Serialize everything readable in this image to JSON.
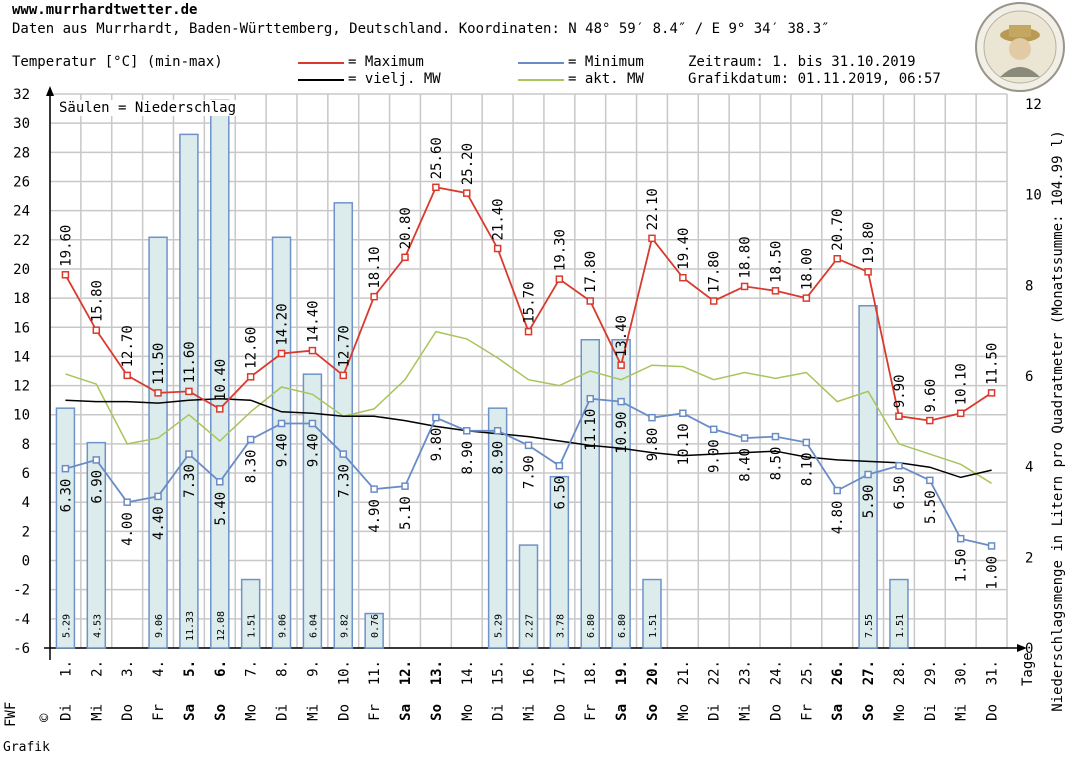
{
  "header": {
    "site": "www.murrhardtwetter.de",
    "subtitle": "Daten aus Murrhardt, Baden-Württemberg, Deutschland. Koordinaten: N 48° 59′ 8.4″ / E 9° 34′ 38.3″",
    "period": "Zeitraum: 1. bis 31.10.2019",
    "graph_date": "Grafikdatum: 01.11.2019, 06:57"
  },
  "footer": {
    "brand_a": "FWF",
    "brand_b": "©",
    "brand_c": "Grafik",
    "tage": "Tage"
  },
  "colors": {
    "max": "#d93a2e",
    "min": "#6a8cc6",
    "longterm": "#000000",
    "current": "#a8c45a",
    "bar_fill": "#dcecec",
    "bar_stroke": "#6f92c8",
    "grid": "#c8c8c8"
  },
  "chart_data": {
    "type": "line",
    "ylabel": "Temperatur [°C] (min-max)",
    "y2label": "Niederschlagsmenge in Litern pro Quadratmeter (Monatssumme: 104.99 l)",
    "bars_note": "Säulen = Niederschlag",
    "ylim": [
      -6,
      32
    ],
    "y_ticks": [
      -6,
      -4,
      -2,
      0,
      2,
      4,
      6,
      8,
      10,
      12,
      14,
      16,
      18,
      20,
      22,
      24,
      26,
      28,
      30,
      32
    ],
    "y2lim": [
      0,
      12
    ],
    "y2_ticks": [
      0,
      2,
      4,
      6,
      8,
      10,
      12
    ],
    "grid": true,
    "x": [
      "1.",
      "2.",
      "3.",
      "4.",
      "5.",
      "6.",
      "7.",
      "8.",
      "9.",
      "10.",
      "11.",
      "12.",
      "13.",
      "14.",
      "15.",
      "16.",
      "17.",
      "18.",
      "19.",
      "20.",
      "21.",
      "22.",
      "23.",
      "24.",
      "25.",
      "26.",
      "27.",
      "28.",
      "29.",
      "30.",
      "31."
    ],
    "weekdays": [
      "Di",
      "Mi",
      "Do",
      "Fr",
      "Sa",
      "So",
      "Mo",
      "Di",
      "Mi",
      "Do",
      "Fr",
      "Sa",
      "So",
      "Mo",
      "Di",
      "Mi",
      "Do",
      "Fr",
      "Sa",
      "So",
      "Mo",
      "Di",
      "Mi",
      "Do",
      "Fr",
      "Sa",
      "So",
      "Mo",
      "Di",
      "Mi",
      "Do"
    ],
    "weekend": [
      false,
      false,
      false,
      false,
      true,
      true,
      false,
      false,
      false,
      false,
      false,
      true,
      true,
      false,
      false,
      false,
      false,
      false,
      true,
      true,
      false,
      false,
      false,
      false,
      false,
      true,
      true,
      false,
      false,
      false,
      false
    ],
    "legend": {
      "max": "= Maximum",
      "min": "= Minimum",
      "longterm": "= vielj. MW",
      "current": "= akt. MW"
    },
    "max": [
      19.6,
      15.8,
      12.7,
      11.5,
      11.6,
      10.4,
      12.6,
      14.2,
      14.4,
      12.7,
      18.1,
      20.8,
      25.6,
      25.2,
      21.4,
      15.7,
      19.3,
      17.8,
      13.4,
      22.1,
      19.4,
      17.8,
      18.8,
      18.5,
      18.0,
      20.7,
      19.8,
      9.9,
      9.6,
      10.1,
      11.5
    ],
    "min": [
      6.3,
      6.9,
      4.0,
      4.4,
      7.3,
      5.4,
      8.3,
      9.4,
      9.4,
      7.3,
      4.9,
      5.1,
      9.8,
      8.9,
      8.9,
      7.9,
      6.5,
      11.1,
      10.9,
      9.8,
      10.1,
      9.0,
      8.4,
      8.5,
      8.1,
      4.8,
      5.9,
      6.5,
      5.5,
      1.5,
      1.0
    ],
    "precip": [
      5.29,
      4.53,
      0,
      9.06,
      11.33,
      12.08,
      1.51,
      9.06,
      6.04,
      9.82,
      0.76,
      0,
      0,
      0,
      5.29,
      2.27,
      3.78,
      6.8,
      6.8,
      1.51,
      0,
      0,
      0,
      0,
      0,
      0,
      7.55,
      1.51,
      0,
      0,
      0
    ],
    "longterm_mean": [
      11.0,
      10.9,
      10.9,
      10.8,
      11.0,
      11.1,
      11.0,
      10.2,
      10.1,
      9.9,
      9.9,
      9.6,
      9.2,
      8.9,
      8.7,
      8.5,
      8.2,
      7.9,
      7.7,
      7.4,
      7.2,
      7.3,
      7.4,
      7.5,
      7.1,
      6.9,
      6.8,
      6.7,
      6.4,
      5.7,
      6.2
    ],
    "current_mean": [
      12.8,
      12.1,
      8.0,
      8.4,
      10.0,
      8.2,
      10.2,
      11.9,
      11.4,
      9.9,
      10.4,
      12.4,
      15.7,
      15.2,
      13.9,
      12.4,
      12.0,
      13.0,
      12.4,
      13.4,
      13.3,
      12.4,
      12.9,
      12.5,
      12.9,
      10.9,
      11.6,
      8.0,
      7.3,
      6.6,
      5.3
    ]
  }
}
